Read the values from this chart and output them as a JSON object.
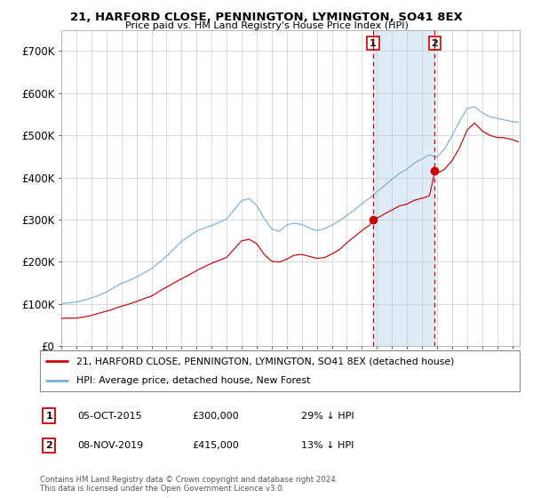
{
  "title": "21, HARFORD CLOSE, PENNINGTON, LYMINGTON, SO41 8EX",
  "subtitle": "Price paid vs. HM Land Registry's House Price Index (HPI)",
  "legend_line1": "21, HARFORD CLOSE, PENNINGTON, LYMINGTON, SO41 8EX (detached house)",
  "legend_line2": "HPI: Average price, detached house, New Forest",
  "annotation1_date": "05-OCT-2015",
  "annotation1_price": "£300,000",
  "annotation1_hpi": "29% ↓ HPI",
  "annotation2_date": "08-NOV-2019",
  "annotation2_price": "£415,000",
  "annotation2_hpi": "13% ↓ HPI",
  "footer": "Contains HM Land Registry data © Crown copyright and database right 2024.\nThis data is licensed under the Open Government Licence v3.0.",
  "hpi_color": "#7aadd4",
  "price_color": "#cc0000",
  "marker_color": "#cc0000",
  "shade_color": "#d6e8f5",
  "background_color": "#ffffff",
  "grid_color": "#cccccc",
  "ylim": [
    0,
    750000
  ],
  "yticks": [
    0,
    100000,
    200000,
    300000,
    400000,
    500000,
    600000,
    700000
  ],
  "ytick_labels": [
    "£0",
    "£100K",
    "£200K",
    "£300K",
    "£400K",
    "£500K",
    "£600K",
    "£700K"
  ],
  "sale1_x": 2015.75,
  "sale1_y": 300000,
  "sale2_x": 2019.85,
  "sale2_y": 415000,
  "xmin": 1995,
  "xmax": 2025.5
}
